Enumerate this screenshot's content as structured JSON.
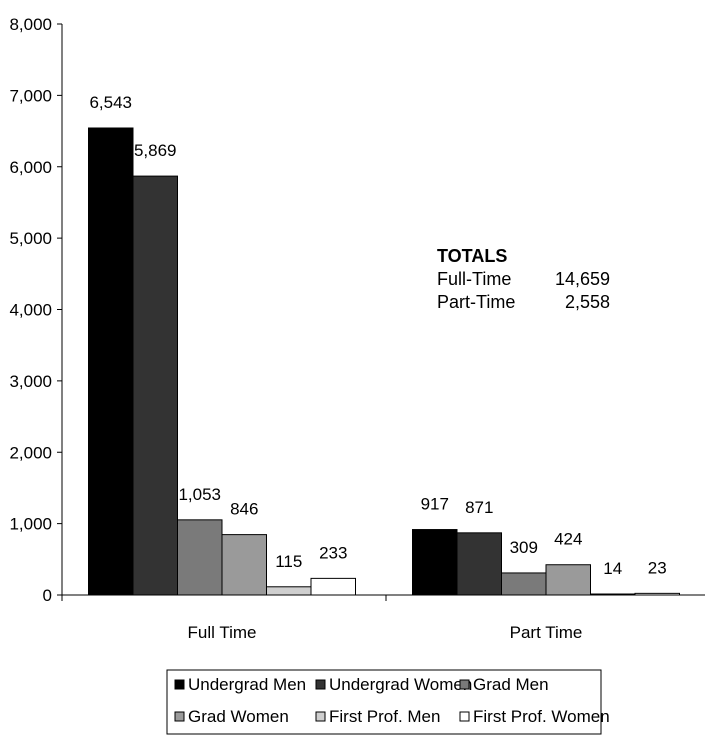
{
  "chart_data": {
    "type": "bar",
    "categories": [
      "Full Time",
      "Part Time"
    ],
    "series": [
      {
        "name": "Undergrad Men",
        "values": [
          6543,
          917
        ],
        "labels": [
          "6,543",
          "917"
        ],
        "color": "#000000"
      },
      {
        "name": "Undergrad Women",
        "values": [
          5869,
          871
        ],
        "labels": [
          "5,869",
          "871"
        ],
        "color": "#333333"
      },
      {
        "name": "Grad Men",
        "values": [
          1053,
          309
        ],
        "labels": [
          "1,053",
          "309"
        ],
        "color": "#7a7a7a"
      },
      {
        "name": "Grad Women",
        "values": [
          846,
          424
        ],
        "labels": [
          "846",
          "424"
        ],
        "color": "#9a9a9a"
      },
      {
        "name": "First Prof. Men",
        "values": [
          115,
          14
        ],
        "labels": [
          "115",
          "14"
        ],
        "color": "#cfcfcf"
      },
      {
        "name": "First Prof. Women",
        "values": [
          233,
          23
        ],
        "labels": [
          "233",
          "23"
        ],
        "color": "#ffffff"
      }
    ],
    "ylim": [
      0,
      8000
    ],
    "yticks": [
      0,
      1000,
      2000,
      3000,
      4000,
      5000,
      6000,
      7000,
      8000
    ],
    "ytick_labels": [
      "0",
      "1,000",
      "2,000",
      "3,000",
      "4,000",
      "5,000",
      "6,000",
      "7,000",
      "8,000"
    ],
    "grid": false,
    "legend_position": "bottom"
  },
  "totals": {
    "title": "TOTALS",
    "rows": [
      {
        "label": "Full-Time",
        "value": "14,659"
      },
      {
        "label": "Part-Time",
        "value": "2,558"
      }
    ]
  }
}
